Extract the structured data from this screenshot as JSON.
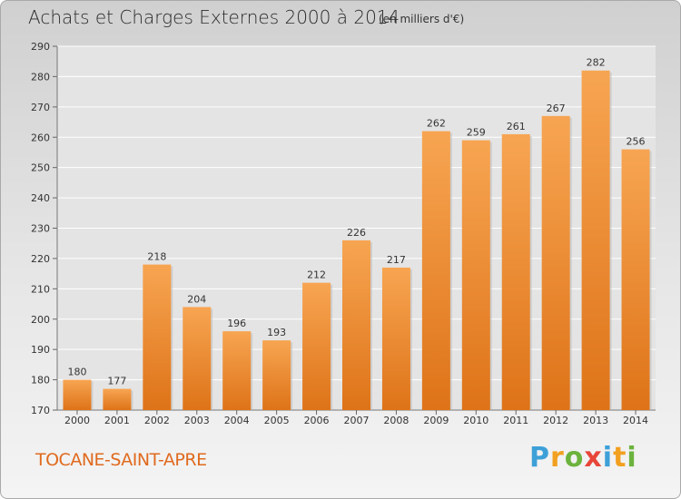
{
  "title": "Achats et Charges Externes 2000 à 2014",
  "subtitle": "(en milliers d'€)",
  "commune": "TOCANE-SAINT-APRE",
  "logo": {
    "letters": [
      "P",
      "r",
      "o",
      "x",
      "i",
      "t",
      "i"
    ],
    "colors": [
      "#3da0d8",
      "#f2a020",
      "#6cb33e",
      "#e8463a",
      "#3da0d8",
      "#f2a020",
      "#6cb33e"
    ]
  },
  "chart_data": {
    "type": "bar",
    "categories": [
      "2000",
      "2001",
      "2002",
      "2003",
      "2004",
      "2005",
      "2006",
      "2007",
      "2008",
      "2009",
      "2010",
      "2011",
      "2012",
      "2013",
      "2014"
    ],
    "values": [
      180,
      177,
      218,
      204,
      196,
      193,
      212,
      226,
      217,
      262,
      259,
      261,
      267,
      282,
      256
    ],
    "ylim": [
      170,
      290
    ],
    "yticks": [
      170,
      180,
      190,
      200,
      210,
      220,
      230,
      240,
      250,
      260,
      270,
      280,
      290
    ],
    "grid": true,
    "bar_color": "#f08c2e"
  }
}
